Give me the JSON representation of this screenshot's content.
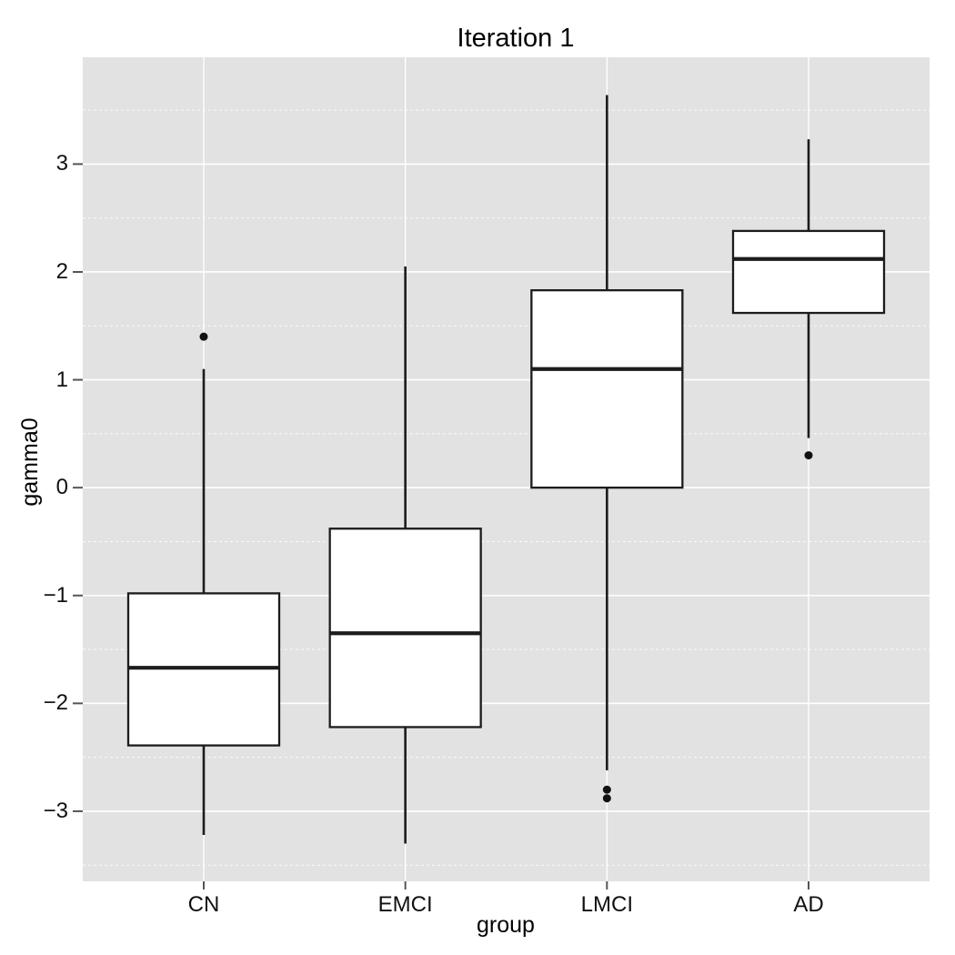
{
  "chart_data": {
    "type": "boxplot",
    "title": "Iteration 1",
    "xlabel": "group",
    "ylabel": "gamma0",
    "categories": [
      "CN",
      "EMCI",
      "LMCI",
      "AD"
    ],
    "ylim": [
      -3.65,
      3.99
    ],
    "yticks": [
      3,
      2,
      1,
      0,
      -1,
      -2,
      -3
    ],
    "ytick_labels": [
      "3",
      "2",
      "1",
      "0",
      "−1",
      "−2",
      "−3"
    ],
    "minor_gridlines": [
      3.5,
      2.5,
      1.5,
      0.5,
      -0.5,
      -1.5,
      -2.5,
      -3.5
    ],
    "grid": {
      "major": "solid",
      "minor": "dashed",
      "legend": "none"
    },
    "series": [
      {
        "category": "CN",
        "lower_whisker": -3.22,
        "q1": -2.39,
        "median": -1.67,
        "q3": -0.98,
        "upper_whisker": 1.1,
        "outliers": [
          1.4
        ]
      },
      {
        "category": "EMCI",
        "lower_whisker": -3.3,
        "q1": -2.22,
        "median": -1.35,
        "q3": -0.38,
        "upper_whisker": 2.05,
        "outliers": []
      },
      {
        "category": "LMCI",
        "lower_whisker": -2.62,
        "q1": 0.0,
        "median": 1.1,
        "q3": 1.83,
        "upper_whisker": 3.64,
        "outliers": [
          -2.8,
          -2.88
        ]
      },
      {
        "category": "AD",
        "lower_whisker": 0.46,
        "q1": 1.62,
        "median": 2.12,
        "q3": 2.38,
        "upper_whisker": 3.23,
        "outliers": [
          0.3
        ]
      }
    ],
    "colors": {
      "panel_bg": "#e2e2e2",
      "grid": "#ffffff",
      "box_fill": "#ffffff",
      "box_stroke": "#1c1c1c",
      "median_stroke": "#1c1c1c",
      "whisker_stroke": "#1c1c1c",
      "outlier_fill": "#111111",
      "tick_mark": "#555555",
      "text": "#111111"
    }
  }
}
